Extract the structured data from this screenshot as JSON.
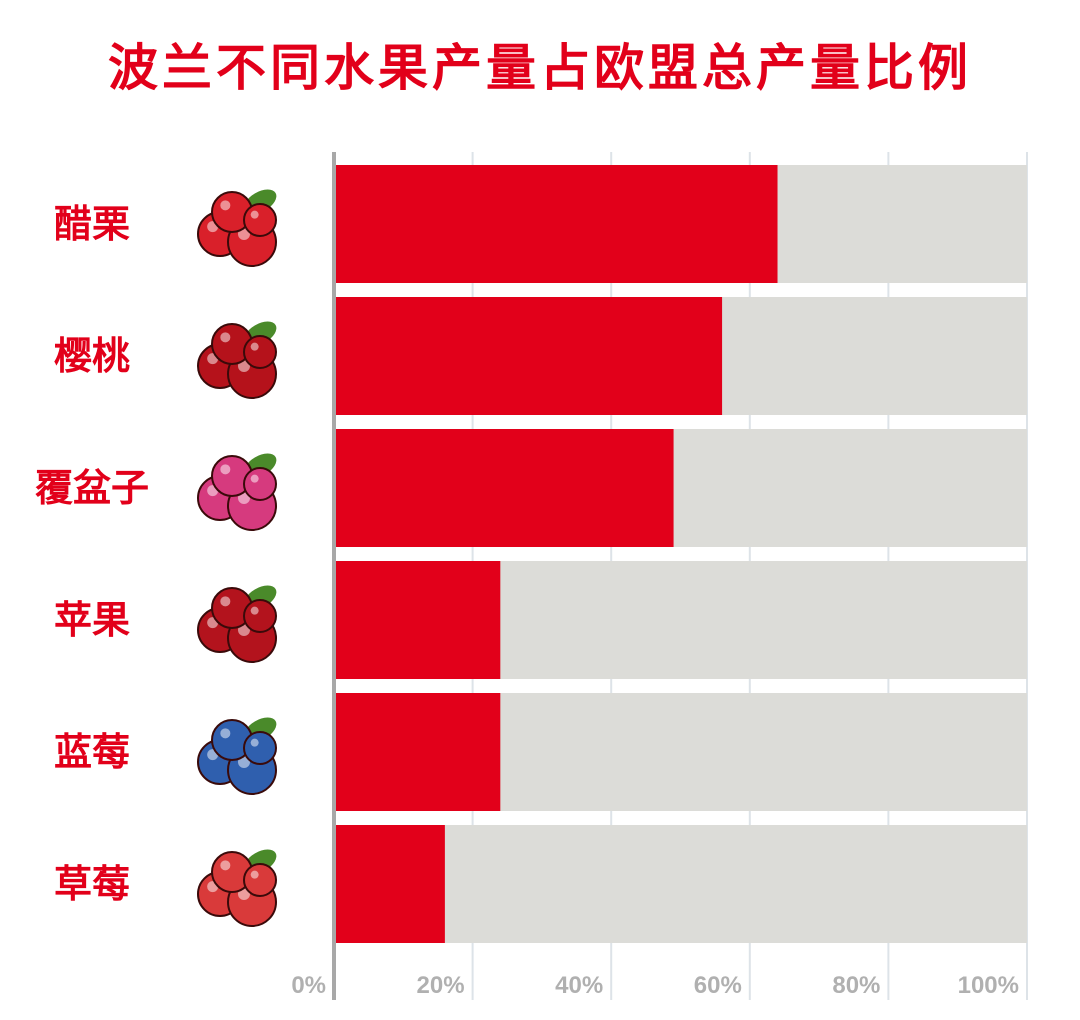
{
  "chart_data": {
    "type": "bar",
    "orientation": "horizontal",
    "stacked_to_100": true,
    "title": "波兰不同水果产量占欧盟总产量比例",
    "categories": [
      "醋栗",
      "樱桃",
      "覆盆子",
      "苹果",
      "蓝莓",
      "草莓"
    ],
    "icons": [
      "currant-icon",
      "cherry-icon",
      "raspberry-icon",
      "apple-icon",
      "blueberry-icon",
      "strawberry-icon"
    ],
    "values": [
      64,
      56,
      49,
      24,
      24,
      16
    ],
    "xlim": [
      0,
      100
    ],
    "xticks": [
      "0%",
      "20%",
      "40%",
      "60%",
      "80%",
      "100%"
    ],
    "grid": true,
    "colors": {
      "bar": "#e2001a",
      "remainder": "#dcdcd8",
      "title": "#e2001a",
      "tick": "#b0b0b0"
    }
  }
}
